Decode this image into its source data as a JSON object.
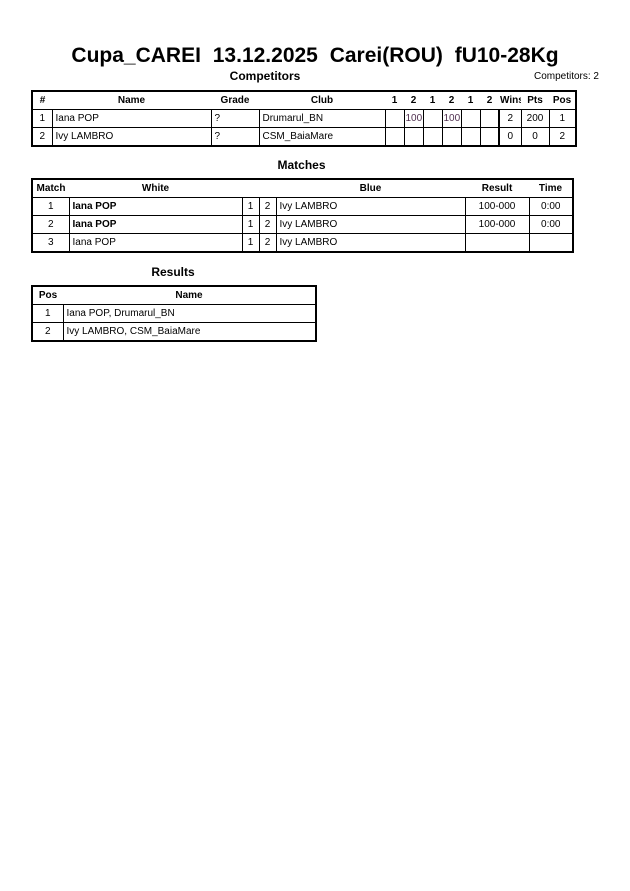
{
  "title": "Cupa_CAREI  13.12.2025  Carei(ROU)   fU10-28Kg",
  "competitors": {
    "heading": "Competitors",
    "count": "Competitors: 2",
    "headers": [
      "#",
      "Name",
      "Grade",
      "Club",
      "1",
      "2",
      "1",
      "2",
      "1",
      "2",
      "Wins",
      "Pts",
      "Pos"
    ],
    "rows": [
      {
        "num": "1",
        "name": "Iana POP",
        "grade": "?",
        "club": "Drumarul_BN",
        "scores": [
          "",
          "100",
          "",
          "100",
          "",
          ""
        ],
        "wins": "2",
        "pts": "200",
        "pos": "1"
      },
      {
        "num": "2",
        "name": "Ivy LAMBRO",
        "grade": "?",
        "club": "CSM_BaiaMare",
        "scores": [
          "",
          "",
          "",
          "",
          "",
          ""
        ],
        "wins": "0",
        "pts": "0",
        "pos": "2"
      }
    ]
  },
  "matches": {
    "heading": "Matches",
    "headers": [
      "Match",
      "White",
      "Blue",
      "Result",
      "Time"
    ],
    "rows": [
      {
        "match": "1",
        "white": "Iana POP",
        "w": "1",
        "b": "2",
        "blue": "Ivy LAMBRO",
        "result": "100-000",
        "time": "0:00",
        "bold": true
      },
      {
        "match": "2",
        "white": "Iana POP",
        "w": "1",
        "b": "2",
        "blue": "Ivy LAMBRO",
        "result": "100-000",
        "time": "0:00",
        "bold": true
      },
      {
        "match": "3",
        "white": "Iana POP",
        "w": "1",
        "b": "2",
        "blue": "Ivy LAMBRO",
        "result": "",
        "time": "",
        "bold": false
      }
    ]
  },
  "results": {
    "heading": "Results",
    "headers": [
      "Pos",
      "Name"
    ],
    "rows": [
      {
        "pos": "1",
        "name": "Iana POP, Drumarul_BN"
      },
      {
        "pos": "2",
        "name": "Ivy LAMBRO, CSM_BaiaMare"
      }
    ]
  }
}
